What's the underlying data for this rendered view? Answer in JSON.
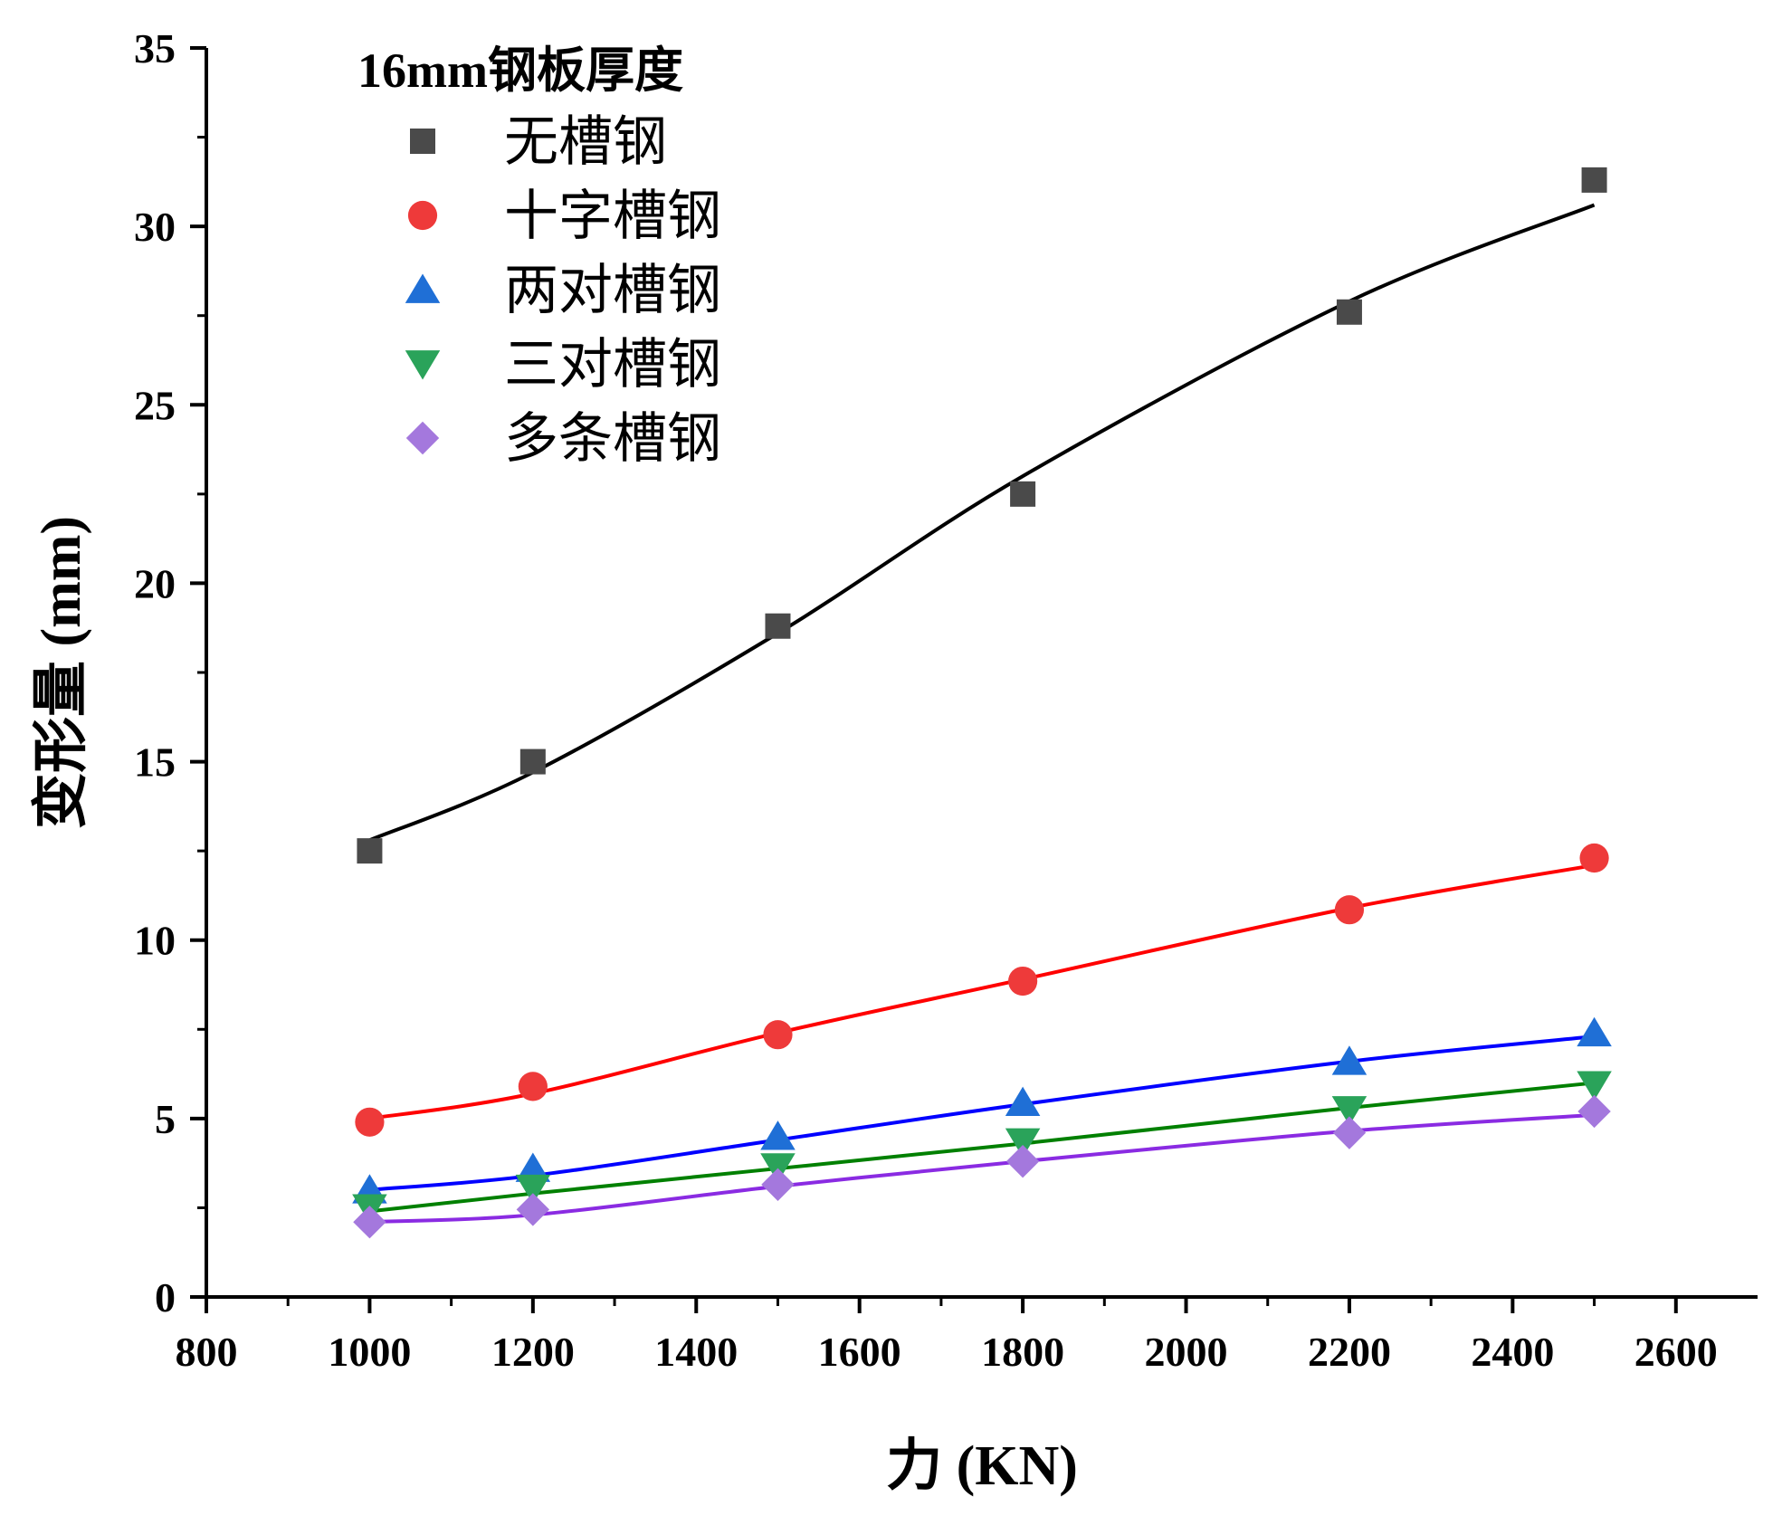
{
  "chart_data": {
    "type": "scatter",
    "title": "",
    "xlabel": "力 (KN)",
    "ylabel": "变形量 (mm)",
    "xlim": [
      800,
      2700
    ],
    "ylim": [
      0,
      35
    ],
    "x_ticks": [
      800,
      1000,
      1200,
      1400,
      1600,
      1800,
      2000,
      2200,
      2400,
      2600
    ],
    "y_ticks": [
      0,
      5,
      10,
      15,
      20,
      25,
      30,
      35
    ],
    "x_tick_labels": [
      "800",
      "1000",
      "1200",
      "1400",
      "1600",
      "1800",
      "2000",
      "2200",
      "2400",
      "2600"
    ],
    "y_tick_labels": [
      "0",
      "5",
      "10",
      "15",
      "20",
      "25",
      "30",
      "35"
    ],
    "legend_title": "16mm钢板厚度",
    "legend_position": "top-left",
    "grid": false,
    "x": [
      1000,
      1200,
      1500,
      1800,
      2200,
      2500
    ],
    "series": [
      {
        "name": "无槽钢",
        "marker": "square",
        "color": "#4a4a4a",
        "line_color": "#000000",
        "values": [
          12.5,
          15.0,
          18.8,
          22.5,
          27.6,
          31.3
        ],
        "fit": [
          12.8,
          14.7,
          18.6,
          23.0,
          27.9,
          30.6
        ]
      },
      {
        "name": "十字槽钢",
        "marker": "circle",
        "color": "#ee3a3a",
        "line_color": "#ff0000",
        "values": [
          4.9,
          5.9,
          7.35,
          8.85,
          10.85,
          12.3
        ],
        "fit": [
          5.0,
          5.7,
          7.4,
          8.9,
          10.9,
          12.1
        ]
      },
      {
        "name": "两对槽钢",
        "marker": "triangle-up",
        "color": "#1f6fd6",
        "line_color": "#0000ff",
        "values": [
          3.0,
          3.6,
          4.5,
          5.45,
          6.6,
          7.4
        ],
        "fit": [
          3.0,
          3.4,
          4.4,
          5.4,
          6.6,
          7.3
        ]
      },
      {
        "name": "三对槽钢",
        "marker": "triangle-down",
        "color": "#2aa35a",
        "line_color": "#008000",
        "values": [
          2.5,
          3.05,
          3.65,
          4.35,
          5.25,
          5.95
        ],
        "fit": [
          2.4,
          2.9,
          3.6,
          4.3,
          5.3,
          6.0
        ]
      },
      {
        "name": "多条槽钢",
        "marker": "diamond",
        "color": "#a478dd",
        "line_color": "#8a2be2",
        "values": [
          2.1,
          2.45,
          3.15,
          3.8,
          4.6,
          5.2
        ],
        "fit": [
          2.1,
          2.3,
          3.1,
          3.8,
          4.65,
          5.1
        ]
      }
    ]
  }
}
